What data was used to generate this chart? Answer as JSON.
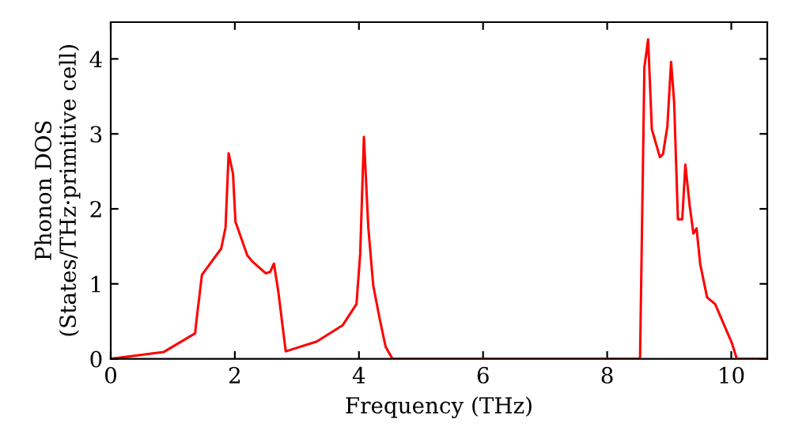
{
  "chart_data": {
    "type": "line",
    "xlabel": "Frequency (THz)",
    "ylabel": "Phonon DOS\n(States/THz·primitive cell)",
    "xlim": [
      0,
      10.58
    ],
    "ylim": [
      0,
      4.49
    ],
    "xticks": [
      0,
      2,
      4,
      6,
      8,
      10
    ],
    "yticks": [
      0,
      1,
      2,
      3,
      4
    ],
    "grid": false,
    "marker": "none",
    "line_style": "solid",
    "series": [
      {
        "color": "#ff0000",
        "x": [
          0,
          0.85,
          1.36,
          1.38,
          1.47,
          1.78,
          1.85,
          1.9,
          1.97,
          2.01,
          2.2,
          2.28,
          2.5,
          2.57,
          2.63,
          2.7,
          2.82,
          3.32,
          3.74,
          3.96,
          4.02,
          4.08,
          4.15,
          4.23,
          4.33,
          4.43,
          4.54,
          8.53,
          8.6,
          8.66,
          8.72,
          8.85,
          8.9,
          8.97,
          9.03,
          9.08,
          9.14,
          9.21,
          9.26,
          9.33,
          9.39,
          9.44,
          9.5,
          9.61,
          9.74,
          10.01,
          10.09,
          10.58
        ],
        "values": [
          0,
          0.09,
          0.34,
          0.5,
          1.12,
          1.47,
          1.75,
          2.74,
          2.47,
          1.83,
          1.38,
          1.3,
          1.14,
          1.16,
          1.27,
          0.9,
          0.1,
          0.23,
          0.45,
          0.73,
          1.4,
          2.96,
          1.76,
          0.98,
          0.55,
          0.16,
          0,
          0,
          3.89,
          4.26,
          3.06,
          2.69,
          2.73,
          3.1,
          3.96,
          3.41,
          1.86,
          1.86,
          2.59,
          2.04,
          1.67,
          1.74,
          1.26,
          0.82,
          0.73,
          0.21,
          0,
          0
        ]
      }
    ]
  }
}
